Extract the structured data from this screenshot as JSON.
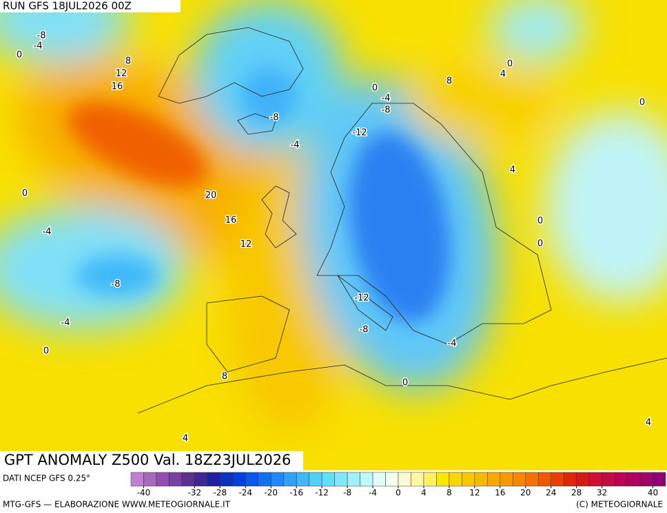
{
  "header": {
    "run": "RUN GFS 18JUL2026 00Z"
  },
  "map": {
    "title": "GPT ANOMALY Z500 Val. 18Z23JUL2026",
    "contour_labels": [
      -8,
      -4,
      0,
      8,
      12,
      16,
      -8,
      -4,
      0,
      -4,
      -8,
      -12,
      8,
      4,
      0,
      0,
      4,
      20,
      16,
      12,
      0,
      -4,
      -8,
      -4,
      0,
      -12,
      -8,
      -4,
      0,
      0,
      0,
      8,
      4,
      4
    ]
  },
  "colorbar": {
    "source": "DATI NCEP GFS 0.25°",
    "range": [
      -42,
      42
    ],
    "ticks": [
      -40,
      -32,
      -28,
      -24,
      -20,
      -16,
      -12,
      -8,
      -4,
      0,
      4,
      8,
      12,
      16,
      20,
      24,
      28,
      32,
      40
    ],
    "colors": [
      "#c080d0",
      "#a868c0",
      "#9050b0",
      "#7840a0",
      "#603090",
      "#402890",
      "#2020a0",
      "#1030c0",
      "#0040e0",
      "#0858f0",
      "#1070f8",
      "#2088f8",
      "#30a0f8",
      "#40b8f8",
      "#50d0f8",
      "#60e0f8",
      "#80e8f8",
      "#a0f0f8",
      "#c0f8f8",
      "#e0fcfc",
      "#f4fff0",
      "#fffbd0",
      "#fff8a0",
      "#fff060",
      "#f8e800",
      "#f8d800",
      "#f8c800",
      "#f8b800",
      "#f8a800",
      "#f89800",
      "#f88800",
      "#f87000",
      "#f05800",
      "#e84000",
      "#e02800",
      "#d81818",
      "#d01030",
      "#c80840",
      "#c00050",
      "#b00060",
      "#a00068",
      "#900070"
    ]
  },
  "footer": {
    "left": "MTG-GFS — ELABORAZIONE WWW.METEOGIORNALE.IT",
    "right": "(C) METEOGIORNALE"
  }
}
